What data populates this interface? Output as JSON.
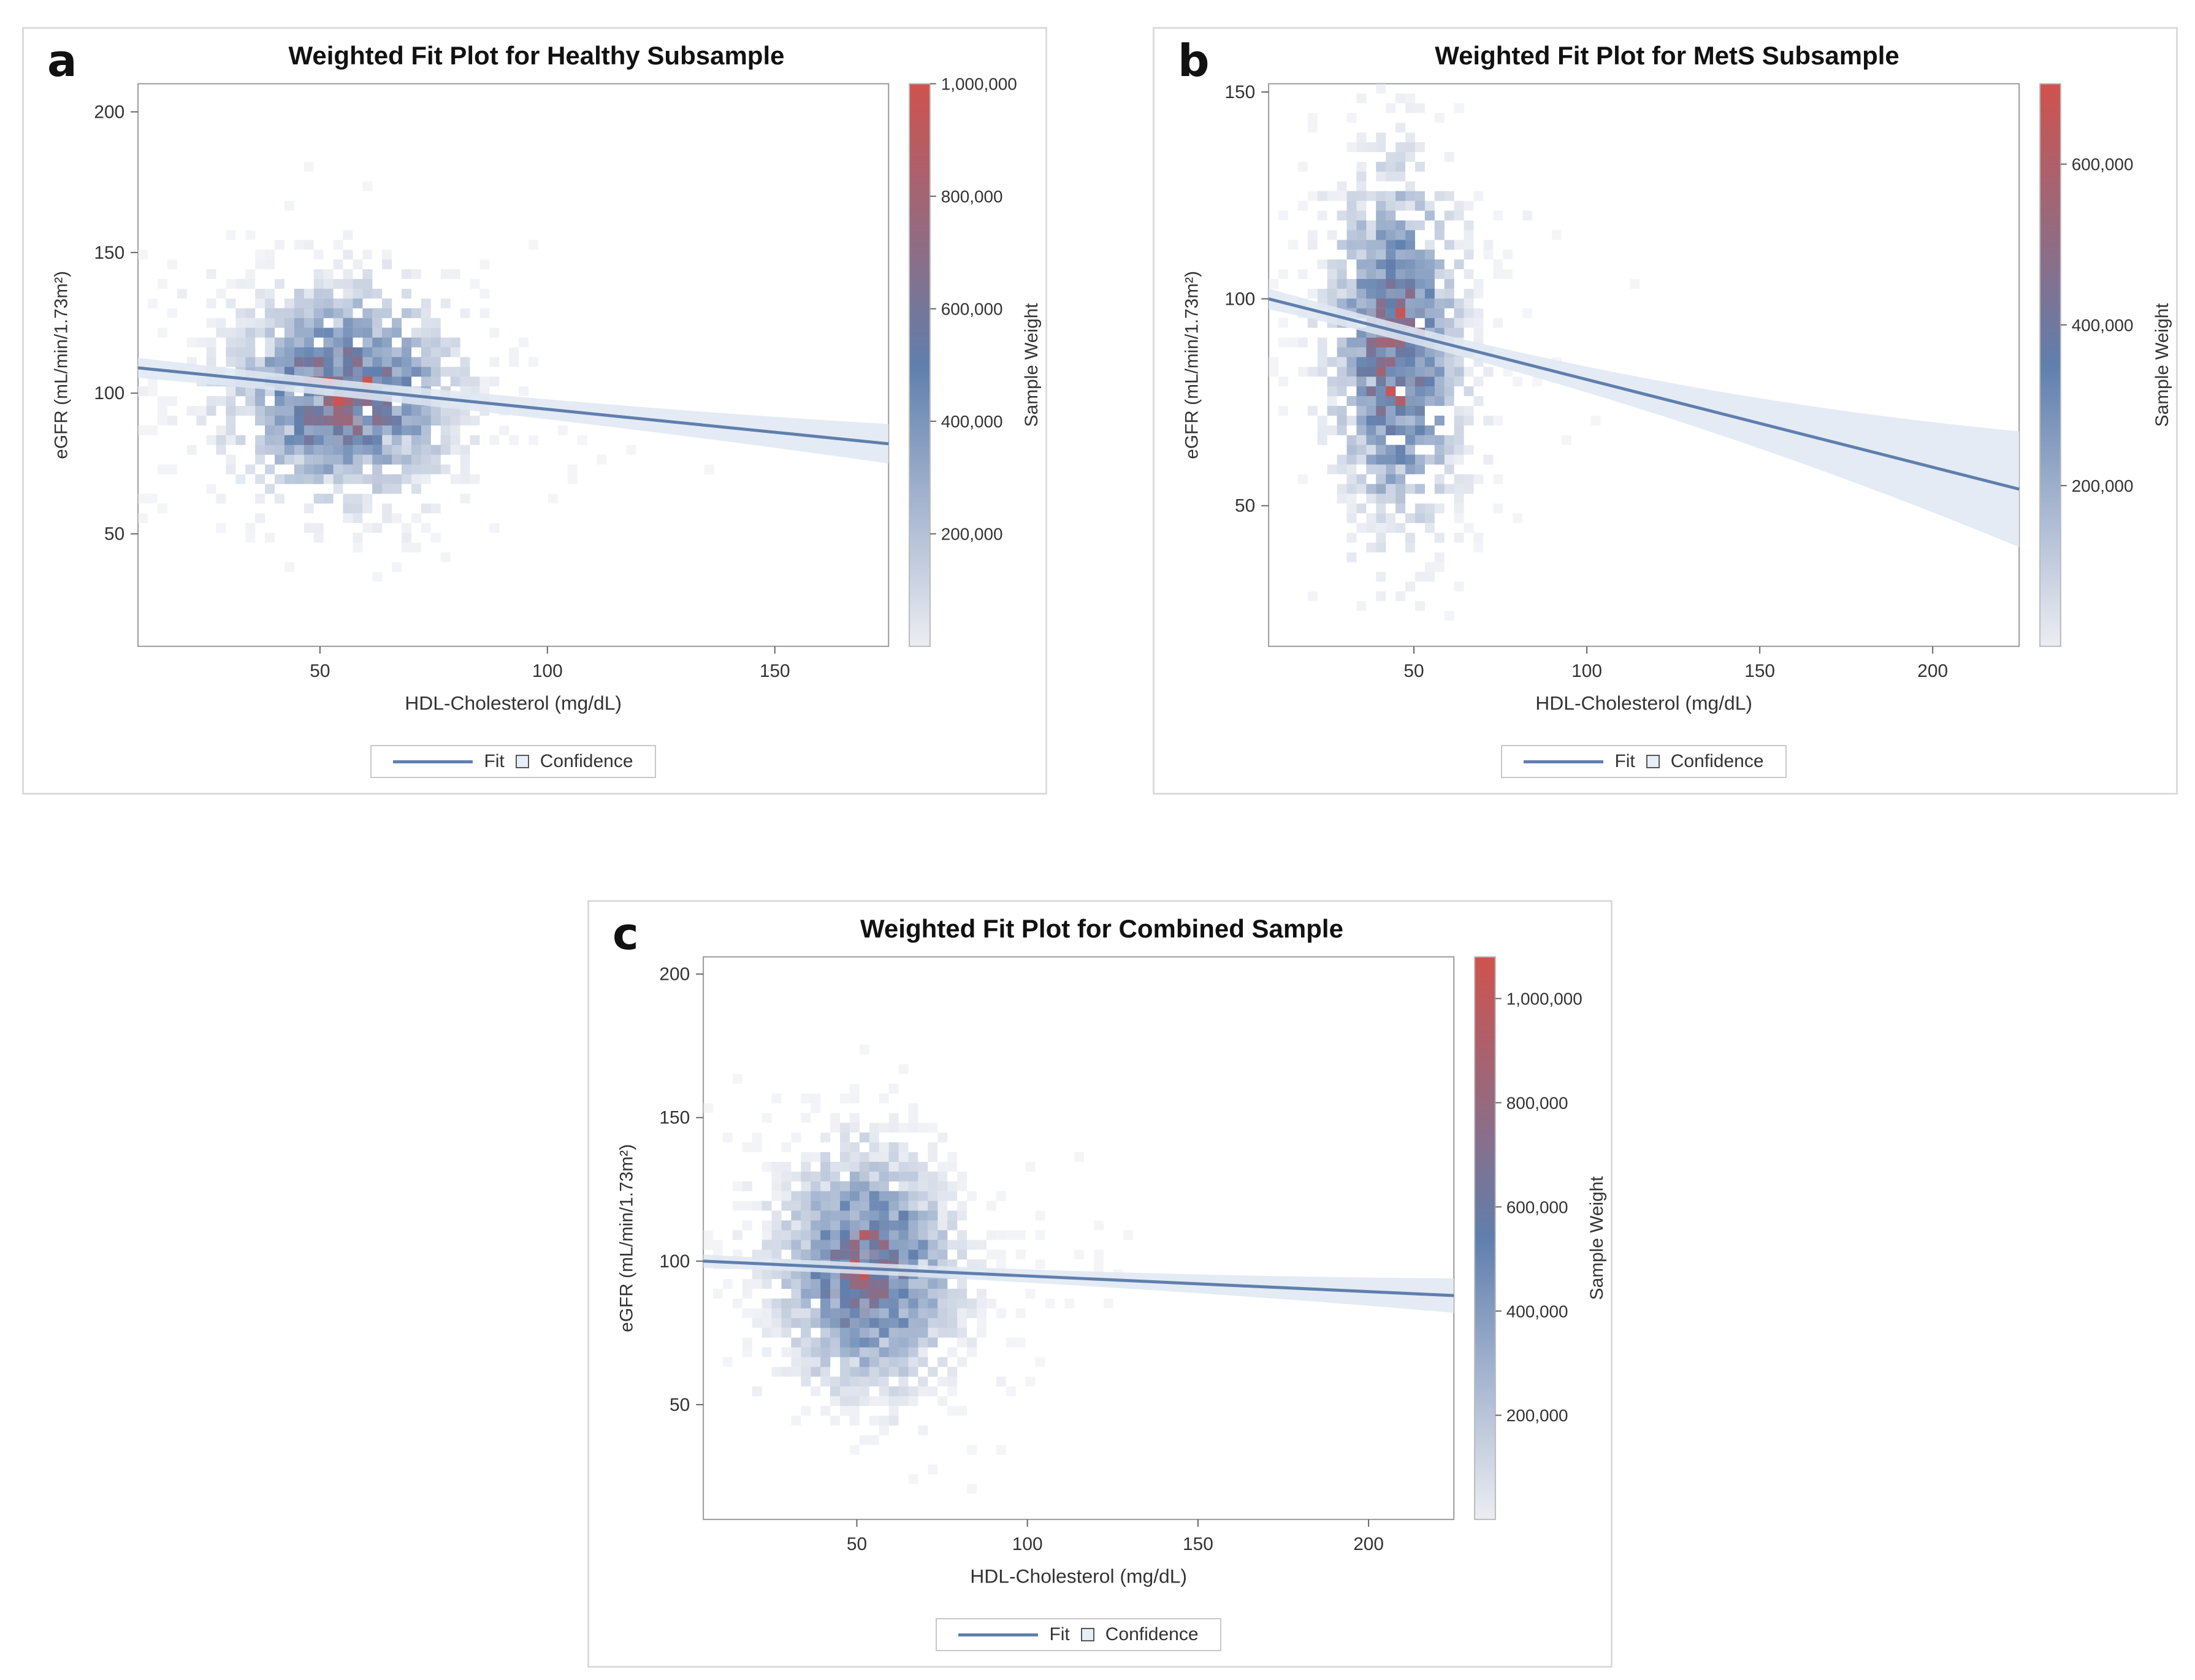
{
  "chart_data": [
    {
      "type": "scatter",
      "panel_label": "a",
      "title": "Weighted Fit Plot for Healthy Subsample",
      "xlabel": "HDL-Cholesterol (mg/dL)",
      "ylabel": "eGFR (mL/min/1.73m²)",
      "xlim": [
        10,
        175
      ],
      "ylim": [
        10,
        210
      ],
      "x_ticks": [
        50,
        100,
        150
      ],
      "y_ticks": [
        50,
        100,
        150,
        200
      ],
      "fit": {
        "x": [
          10,
          175
        ],
        "y": [
          109,
          82
        ],
        "ci_halfwidth": [
          3,
          7
        ]
      },
      "point_cloud": {
        "x_mean": 55,
        "x_sd": 14,
        "y_mean": 100,
        "y_sd": 21,
        "n": 1400
      },
      "colorbar": {
        "label": "Sample Weight",
        "min": 0,
        "max": 1000000,
        "ticks": [
          "200,000",
          "400,000",
          "600,000",
          "800,000",
          "1,000,000"
        ],
        "tick_values": [
          200000,
          400000,
          600000,
          800000,
          1000000
        ]
      },
      "legend": {
        "fit": "Fit",
        "confidence": "Confidence"
      }
    },
    {
      "type": "scatter",
      "panel_label": "b",
      "title": "Weighted Fit Plot for MetS Subsample",
      "xlabel": "HDL-Cholesterol (mg/dL)",
      "ylabel": "eGFR (mL/min/1.73m²)",
      "xlim": [
        8,
        225
      ],
      "ylim": [
        16,
        152
      ],
      "x_ticks": [
        50,
        100,
        150,
        200
      ],
      "y_ticks": [
        50,
        100,
        150
      ],
      "fit": {
        "x": [
          8,
          225
        ],
        "y": [
          100,
          54
        ],
        "ci_halfwidth": [
          2,
          14
        ]
      },
      "point_cloud": {
        "x_mean": 45,
        "x_sd": 11,
        "y_mean": 88,
        "y_sd": 24,
        "n": 1100
      },
      "colorbar": {
        "label": "Sample Weight",
        "min": 0,
        "max": 700000,
        "ticks": [
          "200,000",
          "400,000",
          "600,000"
        ],
        "tick_values": [
          200000,
          400000,
          600000
        ]
      },
      "legend": {
        "fit": "Fit",
        "confidence": "Confidence"
      }
    },
    {
      "type": "scatter",
      "panel_label": "c",
      "title": "Weighted Fit Plot for Combined Sample",
      "xlabel": "HDL-Cholesterol (mg/dL)",
      "ylabel": "eGFR (mL/min/1.73m²)",
      "xlim": [
        5,
        225
      ],
      "ylim": [
        10,
        206
      ],
      "x_ticks": [
        50,
        100,
        150,
        200
      ],
      "y_ticks": [
        50,
        100,
        150,
        200
      ],
      "fit": {
        "x": [
          5,
          225
        ],
        "y": [
          100,
          88
        ],
        "ci_halfwidth": [
          2,
          6
        ]
      },
      "point_cloud": {
        "x_mean": 53,
        "x_sd": 14,
        "y_mean": 97,
        "y_sd": 22,
        "n": 1900
      },
      "colorbar": {
        "label": "Sample Weight",
        "min": 0,
        "max": 1080000,
        "ticks": [
          "200,000",
          "400,000",
          "600,000",
          "800,000",
          "1,000,000"
        ],
        "tick_values": [
          200000,
          400000,
          600000,
          800000,
          1000000
        ]
      },
      "legend": {
        "fit": "Fit",
        "confidence": "Confidence"
      }
    }
  ],
  "colors": {
    "low": "#ecedf2",
    "mid": "#5f7fad",
    "high": "#d0524d",
    "fit_line": "#5f7fad",
    "ci_band": "#dfe7f2"
  }
}
